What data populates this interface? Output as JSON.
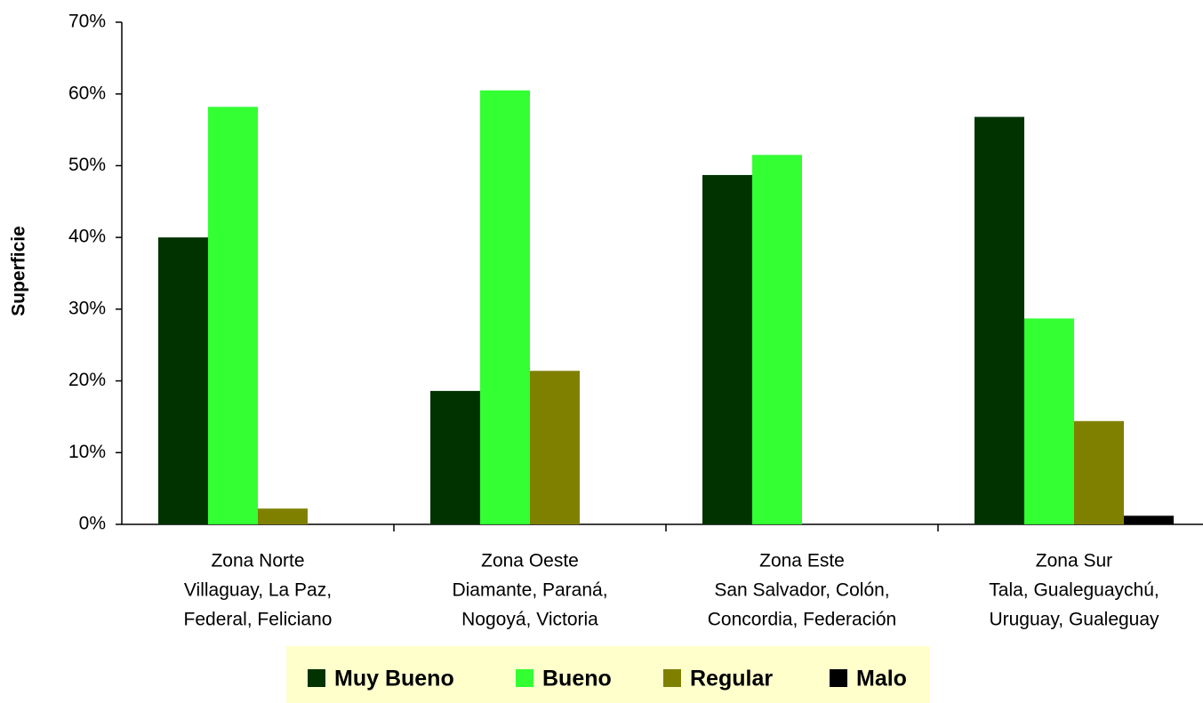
{
  "chart_data": {
    "type": "bar",
    "y_label": "Superficie",
    "categories": [
      [
        "Zona Norte",
        "Villaguay, La Paz,",
        "Federal, Feliciano"
      ],
      [
        "Zona Oeste",
        "Diamante, Paraná,",
        "Nogoyá, Victoria"
      ],
      [
        "Zona Este",
        "San Salvador, Colón,",
        "Concordia, Federación"
      ],
      [
        "Zona Sur",
        "Tala, Gualeguaychú,",
        "Uruguay, Gualeguay"
      ]
    ],
    "series": [
      {
        "name": "Muy Bueno",
        "color": "#003300",
        "values": [
          40.0,
          18.6,
          48.7,
          56.8
        ]
      },
      {
        "name": "Bueno",
        "color": "#33ff33",
        "values": [
          58.2,
          60.5,
          51.5,
          28.7
        ]
      },
      {
        "name": "Regular",
        "color": "#808000",
        "values": [
          2.2,
          21.4,
          0,
          14.4
        ]
      },
      {
        "name": "Malo",
        "color": "#000000",
        "values": [
          0,
          0,
          0,
          1.2
        ]
      }
    ],
    "ylim": [
      0,
      70
    ],
    "yticks": [
      {
        "value": 0,
        "label": "0%"
      },
      {
        "value": 10,
        "label": "10%"
      },
      {
        "value": 20,
        "label": "20%"
      },
      {
        "value": 30,
        "label": "30%"
      },
      {
        "value": 40,
        "label": "40%"
      },
      {
        "value": 50,
        "label": "50%"
      },
      {
        "value": 60,
        "label": "60%"
      },
      {
        "value": 70,
        "label": "70%"
      }
    ],
    "legend": "bottom"
  }
}
